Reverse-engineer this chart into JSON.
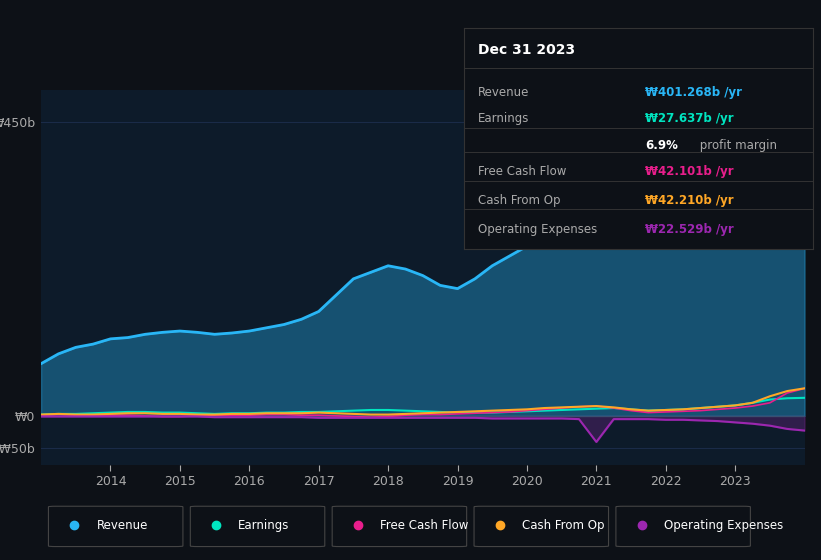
{
  "background_color": "#0d1117",
  "plot_bg_color": "#0d1b2a",
  "grid_color": "#1e3050",
  "years": [
    2013.0,
    2013.25,
    2013.5,
    2013.75,
    2014.0,
    2014.25,
    2014.5,
    2014.75,
    2015.0,
    2015.25,
    2015.5,
    2015.75,
    2016.0,
    2016.25,
    2016.5,
    2016.75,
    2017.0,
    2017.25,
    2017.5,
    2017.75,
    2018.0,
    2018.25,
    2018.5,
    2018.75,
    2019.0,
    2019.25,
    2019.5,
    2019.75,
    2020.0,
    2020.25,
    2020.5,
    2020.75,
    2021.0,
    2021.25,
    2021.5,
    2021.75,
    2022.0,
    2022.25,
    2022.5,
    2022.75,
    2023.0,
    2023.25,
    2023.5,
    2023.75,
    2024.0
  ],
  "revenue": [
    80,
    95,
    105,
    110,
    118,
    120,
    125,
    128,
    130,
    128,
    125,
    127,
    130,
    135,
    140,
    148,
    160,
    185,
    210,
    220,
    230,
    225,
    215,
    200,
    195,
    210,
    230,
    245,
    260,
    275,
    285,
    295,
    305,
    310,
    300,
    295,
    305,
    325,
    350,
    370,
    390,
    405,
    420,
    430,
    401
  ],
  "earnings": [
    2,
    3,
    3,
    4,
    5,
    6,
    6,
    5,
    5,
    4,
    3,
    4,
    4,
    5,
    5,
    6,
    6,
    7,
    8,
    9,
    9,
    8,
    7,
    6,
    5,
    5,
    5,
    6,
    7,
    8,
    9,
    10,
    11,
    12,
    10,
    8,
    9,
    10,
    12,
    14,
    16,
    20,
    25,
    27,
    27.637
  ],
  "free_cash_flow": [
    1,
    2,
    1,
    0,
    1,
    1,
    0,
    -1,
    -1,
    0,
    1,
    1,
    1,
    2,
    2,
    1,
    1,
    0,
    -1,
    -2,
    -1,
    1,
    2,
    2,
    3,
    4,
    5,
    6,
    8,
    10,
    12,
    14,
    15,
    12,
    8,
    5,
    6,
    7,
    8,
    10,
    12,
    15,
    20,
    35,
    42.101
  ],
  "cash_from_op": [
    2,
    3,
    2,
    2,
    3,
    4,
    4,
    3,
    3,
    2,
    2,
    3,
    3,
    4,
    4,
    4,
    5,
    4,
    3,
    2,
    2,
    3,
    4,
    5,
    6,
    7,
    8,
    9,
    10,
    12,
    13,
    14,
    15,
    13,
    10,
    8,
    9,
    10,
    12,
    14,
    16,
    20,
    30,
    38,
    42.21
  ],
  "operating_expenses": [
    -1,
    -1,
    -1,
    -1,
    -1,
    -1,
    -1,
    -1,
    -1,
    -1,
    -2,
    -2,
    -2,
    -2,
    -2,
    -2,
    -3,
    -3,
    -3,
    -3,
    -3,
    -3,
    -3,
    -3,
    -3,
    -3,
    -4,
    -4,
    -4,
    -4,
    -4,
    -5,
    -40,
    -5,
    -5,
    -5,
    -6,
    -6,
    -7,
    -8,
    -10,
    -12,
    -15,
    -20,
    -22.529
  ],
  "revenue_color": "#29b6f6",
  "earnings_color": "#00e5c0",
  "fcf_color": "#e91e8c",
  "cashop_color": "#ffa726",
  "opex_color": "#9c27b0",
  "ylim_min": -75,
  "ylim_max": 500,
  "yticks": [
    -50,
    0,
    450
  ],
  "ytick_labels": [
    "-₩50b",
    "₩0",
    "₩450b"
  ],
  "xlabel_ticks": [
    2014,
    2015,
    2016,
    2017,
    2018,
    2019,
    2020,
    2021,
    2022,
    2023
  ],
  "info_box": {
    "title": "Dec 31 2023",
    "rows": [
      {
        "label": "Revenue",
        "value": "₩401.268b /yr",
        "value_color": "#29b6f6"
      },
      {
        "label": "Earnings",
        "value": "₩27.637b /yr",
        "value_color": "#00e5c0"
      },
      {
        "label": "",
        "value": "6.9% profit margin",
        "value_color": "#ffffff"
      },
      {
        "label": "Free Cash Flow",
        "value": "₩42.101b /yr",
        "value_color": "#e91e8c"
      },
      {
        "label": "Cash From Op",
        "value": "₩42.210b /yr",
        "value_color": "#ffa726"
      },
      {
        "label": "Operating Expenses",
        "value": "₩22.529b /yr",
        "value_color": "#9c27b0"
      }
    ]
  },
  "legend_items": [
    {
      "label": "Revenue",
      "color": "#29b6f6"
    },
    {
      "label": "Earnings",
      "color": "#00e5c0"
    },
    {
      "label": "Free Cash Flow",
      "color": "#e91e8c"
    },
    {
      "label": "Cash From Op",
      "color": "#ffa726"
    },
    {
      "label": "Operating Expenses",
      "color": "#9c27b0"
    }
  ]
}
